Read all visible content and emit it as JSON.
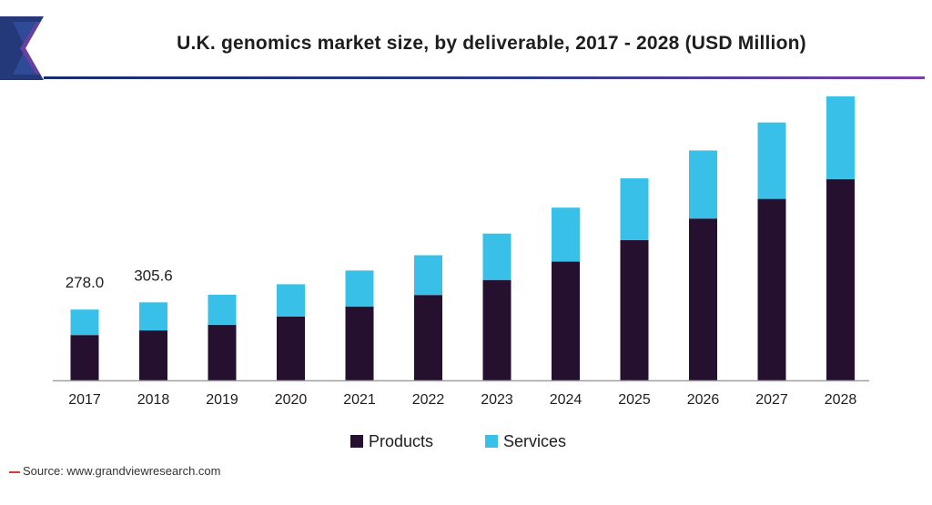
{
  "header": {
    "title": "U.K. genomics market size, by deliverable, 2017 - 2028 (USD Million)"
  },
  "source": {
    "text": "Source: www.grandviewresearch.com"
  },
  "colors": {
    "products": "#26102f",
    "services": "#38c0e8",
    "axis": "#a0a0a0",
    "accent": "#e03a2f"
  },
  "chart_data": {
    "type": "bar",
    "stacked": true,
    "categories": [
      "2017",
      "2018",
      "2019",
      "2020",
      "2021",
      "2022",
      "2023",
      "2024",
      "2025",
      "2026",
      "2027",
      "2028"
    ],
    "series": [
      {
        "name": "Products",
        "values": [
          178,
          196,
          218,
          250,
          290,
          335,
          394,
          466,
          550,
          635,
          712,
          790
        ]
      },
      {
        "name": "Services",
        "values": [
          100,
          110,
          118,
          127,
          141,
          156,
          182,
          212,
          243,
          267,
          300,
          325
        ]
      }
    ],
    "data_labels": [
      "278.0",
      "305.6",
      "",
      "",
      "",
      "",
      "",
      "",
      "",
      "",
      "",
      ""
    ],
    "ylim": [
      0,
      1150
    ],
    "grid": false,
    "legend_position": "bottom"
  }
}
